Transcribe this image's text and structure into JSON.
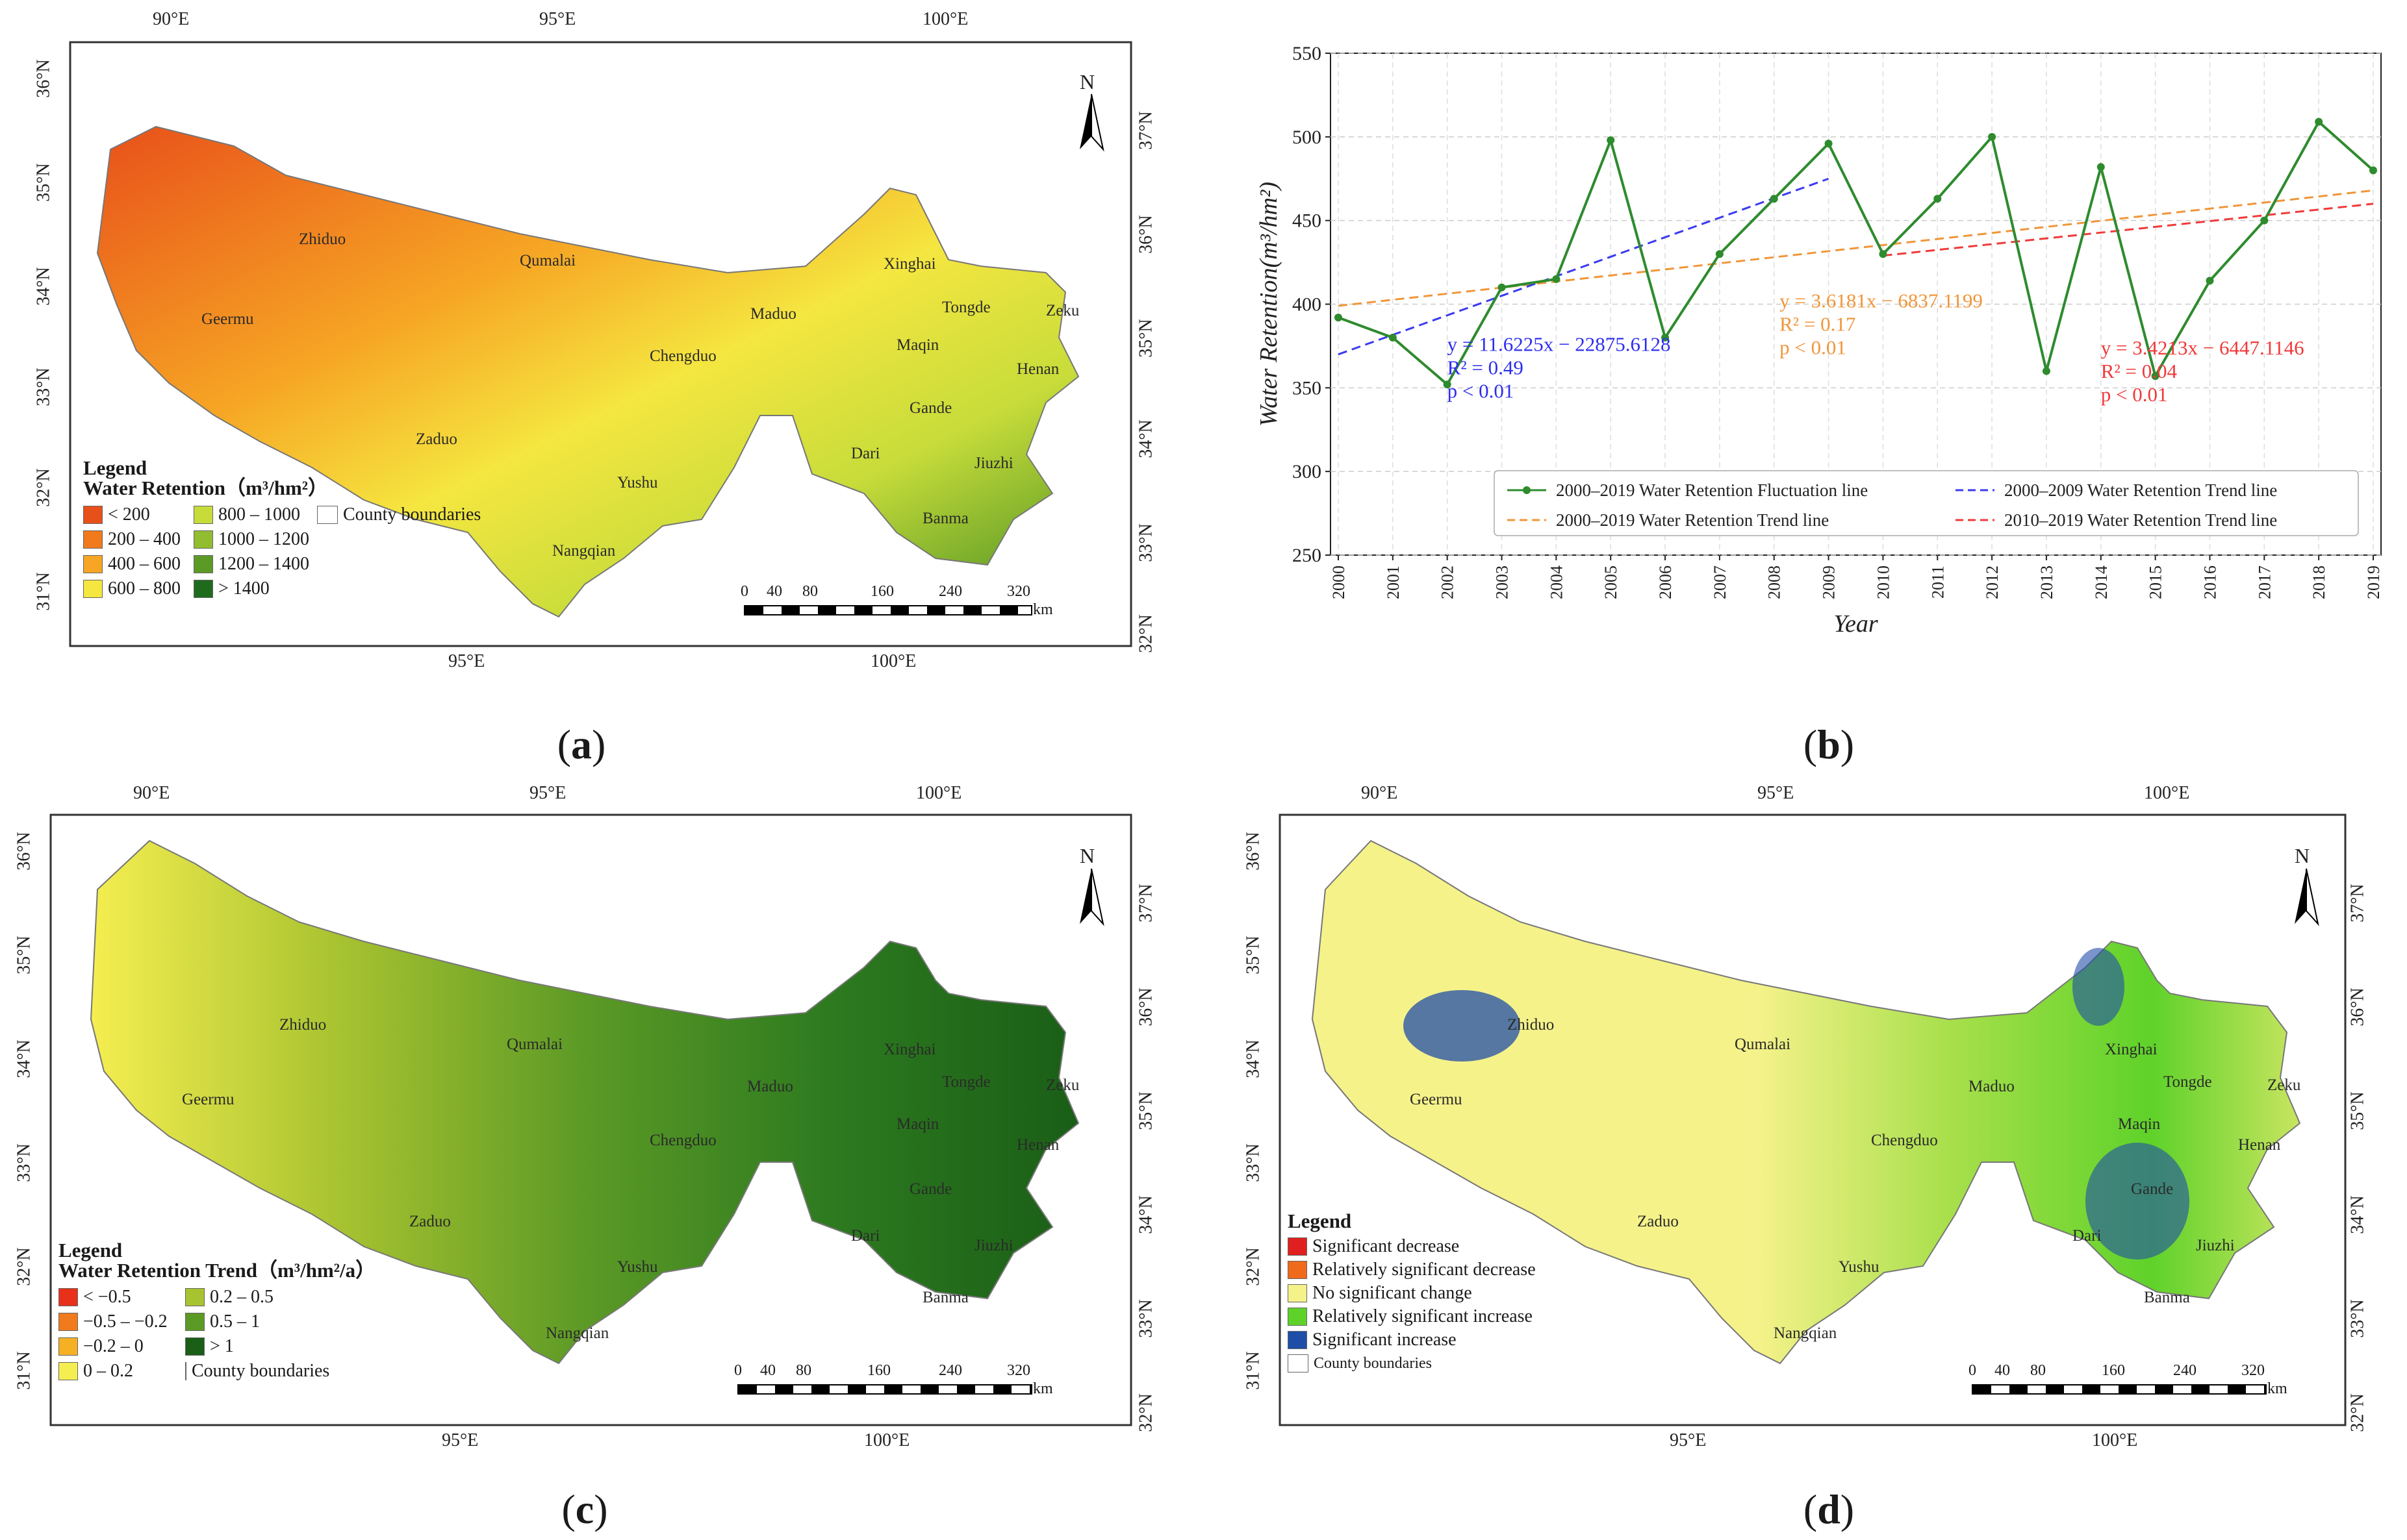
{
  "panels": {
    "a": {
      "caption": "a",
      "legend_title": "Legend",
      "legend_subtitle": "Water Retention（m³/hm²）",
      "legend_items": [
        {
          "label": "< 200",
          "color": "#e8501a"
        },
        {
          "label": "200 – 400",
          "color": "#f07a1c"
        },
        {
          "label": "400 – 600",
          "color": "#f6a524"
        },
        {
          "label": "600 – 800",
          "color": "#f5e640"
        },
        {
          "label": "800 – 1000",
          "color": "#c7dc3a"
        },
        {
          "label": "1000 – 1200",
          "color": "#92bd30"
        },
        {
          "label": "1200 – 1400",
          "color": "#5c9a26"
        },
        {
          "label": "> 1400",
          "color": "#1f6b1d"
        }
      ],
      "boundary_label": "County boundaries"
    },
    "b": {
      "caption": "b"
    },
    "c": {
      "caption": "c",
      "legend_title": "Legend",
      "legend_subtitle": "Water Retention Trend（m³/hm²/a）",
      "legend_items": [
        {
          "label": "< −0.5",
          "color": "#e8301a"
        },
        {
          "label": "−0.5 – −0.2",
          "color": "#f07a1c"
        },
        {
          "label": "−0.2 – 0",
          "color": "#f6b024"
        },
        {
          "label": "0 – 0.2",
          "color": "#f5ee50"
        },
        {
          "label": "0.2 – 0.5",
          "color": "#a8c330"
        },
        {
          "label": "0.5 – 1",
          "color": "#5c9a26"
        },
        {
          "label": "> 1",
          "color": "#1a5e17"
        }
      ],
      "boundary_label": "County boundaries"
    },
    "d": {
      "caption": "d",
      "legend_title": "Legend",
      "legend_items": [
        {
          "label": "Significant decrease",
          "color": "#e02020"
        },
        {
          "label": "Relatively significant decrease",
          "color": "#f06a1c"
        },
        {
          "label": "No significant change",
          "color": "#f5f28a"
        },
        {
          "label": "Relatively significant increase",
          "color": "#5fd22a"
        },
        {
          "label": "Significant increase",
          "color": "#1f4ea8"
        }
      ],
      "boundary_label": "County boundaries"
    }
  },
  "map_common": {
    "top_ticks": [
      "90°E",
      "95°E",
      "100°E"
    ],
    "bottom_ticks": [
      "95°E",
      "100°E"
    ],
    "left_ticks": [
      "36°N",
      "35°N",
      "34°N",
      "33°N",
      "32°N",
      "31°N"
    ],
    "right_ticks": [
      "37°N",
      "36°N",
      "35°N",
      "34°N",
      "33°N",
      "32°N"
    ],
    "north_label": "N",
    "scale_ticks": [
      "0",
      "40",
      "80",
      "160",
      "240",
      "320"
    ],
    "scale_unit": "km",
    "county_labels": [
      "Zhiduo",
      "Qumalai",
      "Geermu",
      "Maduo",
      "Xinghai",
      "Tongde",
      "Zeku",
      "Maqin",
      "Henan",
      "Chengduo",
      "Gande",
      "Zaduo",
      "Dari",
      "Jiuzhi",
      "Yushu",
      "Banma",
      "Nangqian"
    ]
  },
  "chart_data": {
    "type": "line",
    "title": "",
    "xlabel": "Year",
    "ylabel": "Water Retention(m³/hm²)",
    "ylim": [
      250,
      550
    ],
    "yticks": [
      250,
      300,
      350,
      400,
      450,
      500,
      550
    ],
    "x": [
      2000,
      2001,
      2002,
      2003,
      2004,
      2005,
      2006,
      2007,
      2008,
      2009,
      2010,
      2011,
      2012,
      2013,
      2014,
      2015,
      2016,
      2017,
      2018,
      2019
    ],
    "series": [
      {
        "name": "2000–2019 Water Retention Fluctuation line",
        "color": "#2e8b2e",
        "values": [
          392,
          380,
          352,
          410,
          415,
          498,
          380,
          430,
          463,
          496,
          430,
          463,
          500,
          360,
          482,
          357,
          414,
          450,
          509,
          480
        ]
      }
    ],
    "trends": [
      {
        "name": "2000–2019 Water Retention Trend line",
        "color": "#f0963a",
        "x": [
          2000,
          2019
        ],
        "y": [
          399,
          468
        ]
      },
      {
        "name": "2000–2009 Water Retention Trend line",
        "color": "#3a3af0",
        "x": [
          2000,
          2009
        ],
        "y": [
          370,
          475
        ]
      },
      {
        "name": "2010–2019 Water Retention Trend line",
        "color": "#f03a3a",
        "x": [
          2010,
          2019
        ],
        "y": [
          429,
          460
        ]
      }
    ],
    "annotations": [
      {
        "lines": [
          "y = 11.6225x − 22875.6128",
          "R² = 0.49",
          "p < 0.01"
        ],
        "color": "#2e2ef0"
      },
      {
        "lines": [
          "y = 3.6181x − 6837.1199",
          "R² = 0.17",
          "p < 0.01"
        ],
        "color": "#f0963a"
      },
      {
        "lines": [
          "y = 3.4213x − 6447.1146",
          "R² = 0.04",
          "p < 0.01"
        ],
        "color": "#f03a3a"
      }
    ],
    "legend": [
      "2000–2019 Water Retention Fluctuation line",
      "2000–2009 Water Retention Trend line",
      "2000–2019 Water Retention Trend line",
      "2010–2019 Water Retention Trend line"
    ]
  }
}
